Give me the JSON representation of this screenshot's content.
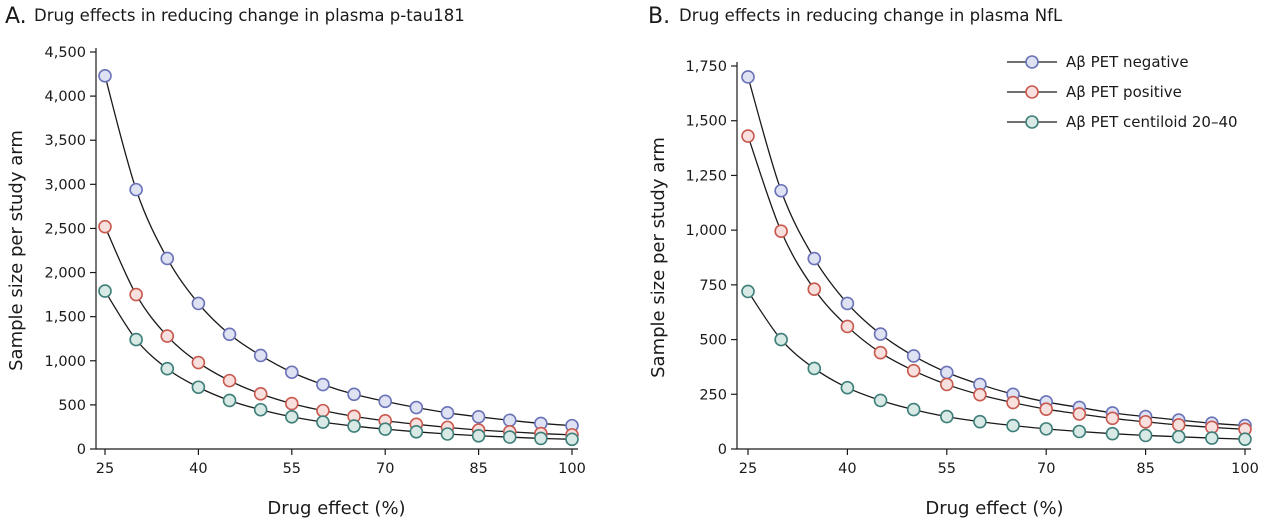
{
  "colors": {
    "negative": {
      "edge": "#6a72b8",
      "fill": "#dfe2f2"
    },
    "positive": {
      "edge": "#c8594f",
      "fill": "#f7e0dd"
    },
    "centiloid": {
      "edge": "#3e7f79",
      "fill": "#d8e9e6"
    }
  },
  "legend": [
    {
      "key": "negative",
      "label": "Aβ PET negative"
    },
    {
      "key": "positive",
      "label": "Aβ PET positive"
    },
    {
      "key": "centiloid",
      "label": "Aβ PET centiloid 20–40"
    }
  ],
  "chart_data": [
    {
      "type": "line",
      "panel_letter": "A.",
      "title": "Drug effects in reducing change in plasma p-tau181",
      "xlabel": "Drug effect (%)",
      "ylabel": "Sample size per study arm",
      "xlim": [
        25,
        100
      ],
      "ylim": [
        0,
        4500
      ],
      "xticks": [
        25,
        40,
        55,
        70,
        85,
        100
      ],
      "yticks": [
        0,
        500,
        1000,
        1500,
        2000,
        2500,
        3000,
        3500,
        4000,
        4500
      ],
      "ytick_labels": [
        "0",
        "500",
        "1,000",
        "1,500",
        "2,000",
        "2,500",
        "3,000",
        "3,500",
        "4,000",
        "4,500"
      ],
      "x": [
        25,
        30,
        35,
        40,
        45,
        50,
        55,
        60,
        65,
        70,
        75,
        80,
        85,
        90,
        95,
        100
      ],
      "series": [
        {
          "key": "negative",
          "values": [
            4230,
            2940,
            2160,
            1650,
            1300,
            1060,
            870,
            730,
            620,
            540,
            470,
            410,
            365,
            325,
            290,
            265
          ]
        },
        {
          "key": "positive",
          "values": [
            2520,
            1750,
            1280,
            980,
            775,
            625,
            515,
            435,
            370,
            320,
            280,
            245,
            215,
            195,
            175,
            160
          ]
        },
        {
          "key": "centiloid",
          "values": [
            1790,
            1240,
            910,
            700,
            550,
            445,
            365,
            305,
            260,
            225,
            195,
            170,
            150,
            135,
            120,
            110
          ]
        }
      ]
    },
    {
      "type": "line",
      "panel_letter": "B.",
      "title": "Drug effects in reducing change in plasma NfL",
      "xlabel": "Drug effect (%)",
      "ylabel": "Sample size per study arm",
      "xlim": [
        25,
        100
      ],
      "ylim": [
        0,
        1750
      ],
      "xticks": [
        25,
        40,
        55,
        70,
        85,
        100
      ],
      "yticks": [
        0,
        250,
        500,
        750,
        1000,
        1250,
        1500,
        1750
      ],
      "ytick_labels": [
        "0",
        "250",
        "500",
        "750",
        "1,000",
        "1,250",
        "1,500",
        "1,750"
      ],
      "x": [
        25,
        30,
        35,
        40,
        45,
        50,
        55,
        60,
        65,
        70,
        75,
        80,
        85,
        90,
        95,
        100
      ],
      "legend_position": "top-right",
      "series": [
        {
          "key": "negative",
          "values": [
            1700,
            1180,
            870,
            665,
            525,
            425,
            350,
            295,
            250,
            215,
            190,
            165,
            148,
            132,
            118,
            107
          ]
        },
        {
          "key": "positive",
          "values": [
            1430,
            995,
            730,
            560,
            440,
            358,
            295,
            248,
            212,
            182,
            160,
            140,
            124,
            110,
            99,
            90
          ]
        },
        {
          "key": "centiloid",
          "values": [
            720,
            500,
            368,
            280,
            222,
            180,
            148,
            125,
            107,
            92,
            80,
            70,
            62,
            56,
            50,
            45
          ]
        }
      ]
    }
  ]
}
